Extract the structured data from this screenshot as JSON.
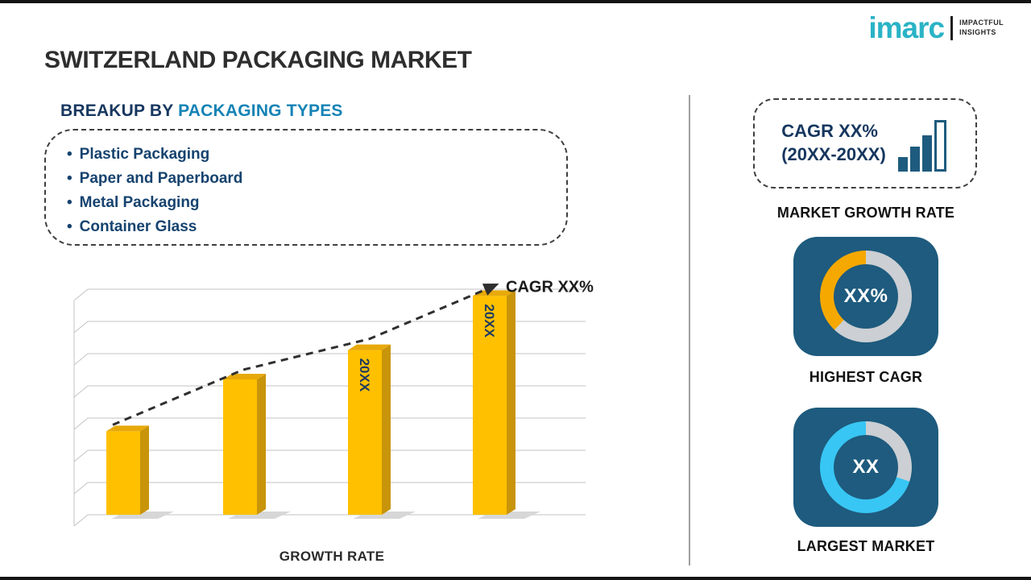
{
  "header": {
    "title": "SWITZERLAND PACKAGING MARKET"
  },
  "logo": {
    "brand": "imarc",
    "tagline_line1": "IMPACTFUL",
    "tagline_line2": "INSIGHTS"
  },
  "breakup": {
    "heading_prefix": "BREAKUP BY",
    "heading_accent": "PACKAGING TYPES",
    "items": [
      "Plastic Packaging",
      "Paper and Paperboard",
      "Metal Packaging",
      "Container Glass"
    ]
  },
  "chart_data": {
    "type": "bar",
    "title": "",
    "xlabel": "GROWTH RATE",
    "ylabel": "",
    "categories": [
      "",
      "",
      "20XX",
      "20XX"
    ],
    "values": [
      37,
      60,
      73,
      97
    ],
    "ylim": [
      0,
      100
    ],
    "gridlines": 8,
    "grid": true,
    "legend": "none",
    "bar_color": "#FFC000",
    "bar_side_color": "#C8940A",
    "bar_top_color": "#E7A90B",
    "trend_label": "CAGR XX%",
    "trend_style": "dashed-arrow-up"
  },
  "stats": {
    "growth_rate": {
      "line1": "CAGR XX%",
      "line2": "(20XX-20XX)",
      "caption": "MARKET GROWTH RATE",
      "icon": "ascending-bars-icon"
    },
    "highest_cagr": {
      "value": "XX%",
      "caption": "HIGHEST CAGR",
      "accent_color": "#F5A800",
      "track_color": "#CCCFD3",
      "accent_percent": 38
    },
    "largest_market": {
      "value": "XX",
      "caption": "LARGEST MARKET",
      "accent_color": "#38C6F4",
      "track_color": "#CCCFD3",
      "accent_percent": 70
    }
  },
  "colors": {
    "navy": "#1E5B7E",
    "heading_dark": "#17375F",
    "accent_teal": "#1583B5",
    "logo_teal": "#2AB3C6",
    "bar_yellow": "#FFC000"
  }
}
